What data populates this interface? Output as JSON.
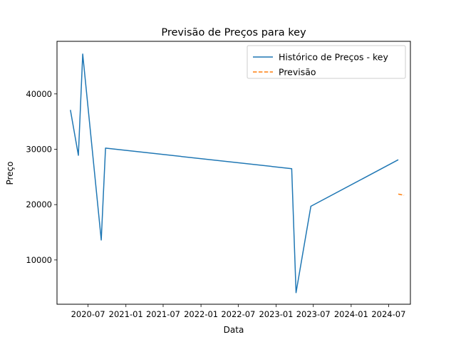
{
  "chart_data": {
    "type": "line",
    "title": "Previsão de Preços para key",
    "xlabel": "Data",
    "ylabel": "Preço",
    "x_type": "date",
    "xlim": [
      "2020-02-01",
      "2024-10-15"
    ],
    "ylim": [
      2000,
      49500
    ],
    "x_ticks": [
      {
        "date": "2020-07-01",
        "label": "2020-07"
      },
      {
        "date": "2021-01-01",
        "label": "2021-01"
      },
      {
        "date": "2021-07-01",
        "label": "2021-07"
      },
      {
        "date": "2022-01-01",
        "label": "2022-01"
      },
      {
        "date": "2022-07-01",
        "label": "2022-07"
      },
      {
        "date": "2023-01-01",
        "label": "2023-01"
      },
      {
        "date": "2023-07-01",
        "label": "2023-07"
      },
      {
        "date": "2024-01-01",
        "label": "2024-01"
      },
      {
        "date": "2024-07-01",
        "label": "2024-07"
      }
    ],
    "y_ticks": [
      {
        "value": 10000,
        "label": "10000"
      },
      {
        "value": 20000,
        "label": "20000"
      },
      {
        "value": 30000,
        "label": "30000"
      },
      {
        "value": 40000,
        "label": "40000"
      }
    ],
    "grid": false,
    "legend_position": "top-right",
    "series": [
      {
        "name": "Histórico de Preços - key",
        "color": "#1f77b4",
        "line_style": "solid",
        "points": [
          {
            "x": "2020-04-06",
            "y": 37100
          },
          {
            "x": "2020-05-15",
            "y": 28900
          },
          {
            "x": "2020-06-05",
            "y": 47200
          },
          {
            "x": "2020-09-03",
            "y": 13600
          },
          {
            "x": "2020-09-24",
            "y": 30200
          },
          {
            "x": "2023-03-18",
            "y": 26500
          },
          {
            "x": "2023-04-08",
            "y": 4100
          },
          {
            "x": "2023-06-19",
            "y": 19700
          },
          {
            "x": "2024-08-17",
            "y": 28100
          }
        ]
      },
      {
        "name": "Previsão",
        "color": "#ff7f0e",
        "line_style": "dashed",
        "points": [
          {
            "x": "2024-08-17",
            "y": 21900
          },
          {
            "x": "2024-09-14",
            "y": 21700
          }
        ]
      }
    ]
  }
}
